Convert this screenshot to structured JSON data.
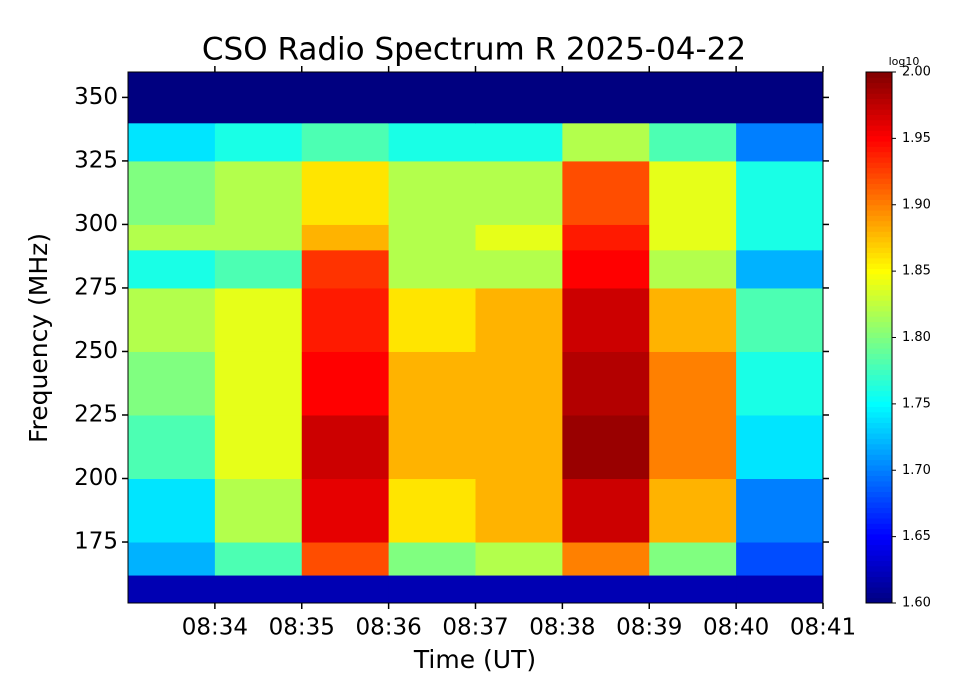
{
  "chart_data": {
    "type": "heatmap",
    "title": "CSO Radio Spectrum R 2025-04-22",
    "x_label": "Time (UT)",
    "y_label": "Frequency (MHz)",
    "colorbar_label": "log10",
    "colormap": "jet",
    "xlim": [
      "08:33",
      "08:41"
    ],
    "xticks": [
      "08:34",
      "08:35",
      "08:36",
      "08:37",
      "08:38",
      "08:39",
      "08:40",
      "08:41"
    ],
    "ylim": [
      151,
      360
    ],
    "yticks": [
      175,
      200,
      225,
      250,
      275,
      300,
      325,
      350
    ],
    "x_bins": [
      "08:33",
      "08:34",
      "08:35",
      "08:36",
      "08:37",
      "08:38",
      "08:39",
      "08:40",
      "08:41"
    ],
    "y_bins": [
      151,
      162,
      175,
      200,
      225,
      250,
      275,
      290,
      300,
      325,
      340,
      360
    ],
    "z": [
      [
        1.62,
        1.62,
        1.62,
        1.62,
        1.62,
        1.62,
        1.62,
        1.62
      ],
      [
        1.72,
        1.78,
        1.92,
        1.8,
        1.82,
        1.9,
        1.8,
        1.68
      ],
      [
        1.74,
        1.82,
        1.96,
        1.86,
        1.88,
        1.97,
        1.88,
        1.7
      ],
      [
        1.78,
        1.84,
        1.97,
        1.88,
        1.88,
        1.99,
        1.9,
        1.74
      ],
      [
        1.8,
        1.84,
        1.95,
        1.88,
        1.88,
        1.98,
        1.9,
        1.76
      ],
      [
        1.82,
        1.84,
        1.94,
        1.86,
        1.88,
        1.97,
        1.88,
        1.78
      ],
      [
        1.76,
        1.78,
        1.93,
        1.82,
        1.82,
        1.95,
        1.82,
        1.72
      ],
      [
        1.82,
        1.82,
        1.88,
        1.82,
        1.84,
        1.94,
        1.84,
        1.76
      ],
      [
        1.8,
        1.82,
        1.86,
        1.82,
        1.82,
        1.92,
        1.84,
        1.76
      ],
      [
        1.74,
        1.76,
        1.78,
        1.76,
        1.76,
        1.82,
        1.78,
        1.7
      ],
      [
        1.6,
        1.6,
        1.6,
        1.6,
        1.6,
        1.6,
        1.6,
        1.6
      ]
    ],
    "zlim": [
      1.6,
      2.0
    ],
    "zticks": [
      {
        "value": 1.6,
        "label": "1.60"
      },
      {
        "value": 1.65,
        "label": "1.65"
      },
      {
        "value": 1.7,
        "label": "1.70"
      },
      {
        "value": 1.75,
        "label": "1.75"
      },
      {
        "value": 1.8,
        "label": "1.80"
      },
      {
        "value": 1.85,
        "label": "1.85"
      },
      {
        "value": 1.9,
        "label": "1.90"
      },
      {
        "value": 1.95,
        "label": "1.95"
      },
      {
        "value": 2.0,
        "label": "2.00"
      }
    ]
  }
}
